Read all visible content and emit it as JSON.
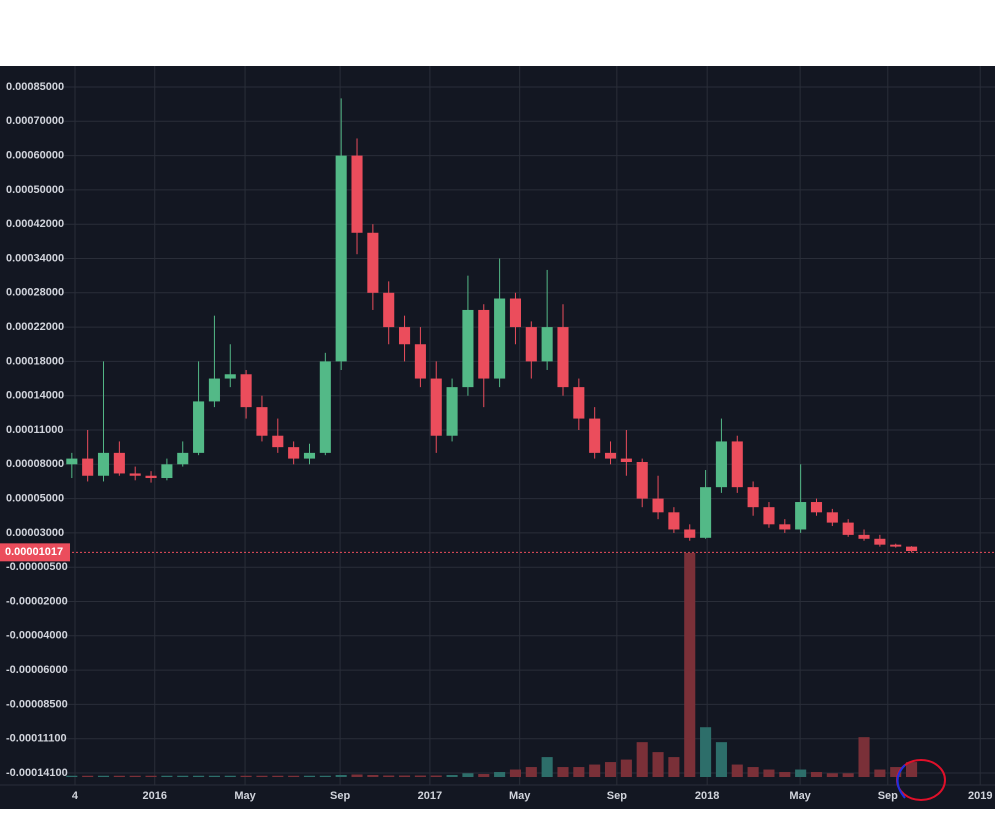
{
  "chart_data": {
    "type": "candlestick",
    "up_color": "#53b987",
    "down_color": "#eb4d5c",
    "grid": true,
    "x": [
      0,
      3,
      6,
      9,
      12,
      15,
      18,
      21,
      24,
      27,
      30,
      33,
      36,
      39,
      42,
      45,
      48,
      51,
      54,
      57,
      60,
      63,
      66,
      69,
      72,
      75,
      78,
      81,
      84,
      87,
      90,
      93,
      96,
      99,
      102,
      105,
      108,
      111,
      114,
      117,
      120,
      123,
      126,
      129,
      132,
      135,
      138,
      141,
      144,
      147,
      150,
      153,
      156,
      159
    ],
    "open": [
      8e-05,
      8.5e-05,
      7e-05,
      9e-05,
      7.2e-05,
      7e-05,
      6.8e-05,
      8e-05,
      9e-05,
      0.000135,
      0.00016,
      0.000165,
      0.00013,
      0.000105,
      9.5e-05,
      8.5e-05,
      9e-05,
      0.00018,
      0.0006,
      0.0004,
      0.00028,
      0.00022,
      0.0002,
      0.00016,
      0.000105,
      0.00015,
      0.00025,
      0.00016,
      0.00027,
      0.00022,
      0.00018,
      0.00022,
      0.00015,
      0.00012,
      9e-05,
      8.5e-05,
      8.2e-05,
      5e-05,
      4.2e-05,
      3.2e-05,
      2.5e-05,
      6e-05,
      0.0001,
      6e-05,
      4.5e-05,
      3.5e-05,
      3.2e-05,
      4.8e-05,
      4.2e-05,
      3.6e-05,
      2.8e-05,
      2.4e-05,
      1.8e-05,
      1.6e-05
    ],
    "high": [
      9e-05,
      0.00011,
      0.00018,
      0.0001,
      7.8e-05,
      7.4e-05,
      8.5e-05,
      0.0001,
      0.00018,
      0.00024,
      0.0002,
      0.00017,
      0.00014,
      0.00012,
      0.0001,
      9.8e-05,
      0.00019,
      0.0008,
      0.00065,
      0.00042,
      0.0003,
      0.00024,
      0.00022,
      0.00018,
      0.00016,
      0.00031,
      0.00026,
      0.00034,
      0.00028,
      0.00023,
      0.00032,
      0.00026,
      0.00016,
      0.00013,
      0.0001,
      0.00011,
      8.5e-05,
      7e-05,
      4.5e-05,
      3.5e-05,
      7.5e-05,
      0.00012,
      0.000105,
      6.5e-05,
      4.8e-05,
      3.8e-05,
      8e-05,
      5e-05,
      4.4e-05,
      3.8e-05,
      3.2e-05,
      2.8e-05,
      1.9e-05,
      1.65e-05
    ],
    "low": [
      6.8e-05,
      6.5e-05,
      6.5e-05,
      7e-05,
      6.6e-05,
      6.4e-05,
      6.6e-05,
      7.8e-05,
      8.8e-05,
      0.00013,
      0.00015,
      0.00012,
      0.0001,
      9e-05,
      8e-05,
      8e-05,
      8.8e-05,
      0.00017,
      0.00035,
      0.00025,
      0.0002,
      0.00018,
      0.00015,
      9e-05,
      0.0001,
      0.00014,
      0.00013,
      0.00015,
      0.0002,
      0.00016,
      0.00017,
      0.00014,
      0.00011,
      8.5e-05,
      8e-05,
      7e-05,
      4.5e-05,
      3.8e-05,
      3e-05,
      2.2e-05,
      2.4e-05,
      5.5e-05,
      5.5e-05,
      4e-05,
      3.3e-05,
      3e-05,
      3e-05,
      4e-05,
      3.4e-05,
      2.6e-05,
      2.2e-05,
      1.6e-05,
      1.5e-05,
      1e-05
    ],
    "close": [
      8.5e-05,
      7e-05,
      9e-05,
      7.2e-05,
      7e-05,
      6.8e-05,
      8e-05,
      9e-05,
      0.000135,
      0.00016,
      0.000165,
      0.00013,
      0.000105,
      9.5e-05,
      8.5e-05,
      9e-05,
      0.00018,
      0.0006,
      0.0004,
      0.00028,
      0.00022,
      0.0002,
      0.00016,
      0.000105,
      0.00015,
      0.00025,
      0.00016,
      0.00027,
      0.00022,
      0.00018,
      0.00022,
      0.00015,
      0.00012,
      9e-05,
      8.5e-05,
      8.2e-05,
      5e-05,
      4.2e-05,
      3.2e-05,
      2.5e-05,
      6e-05,
      0.0001,
      6e-05,
      4.5e-05,
      3.5e-05,
      3.2e-05,
      4.8e-05,
      4.2e-05,
      3.6e-05,
      2.8e-05,
      2.4e-05,
      1.8e-05,
      1.6e-05,
      1.15e-05
    ],
    "volume": [
      0.5,
      0.5,
      0.5,
      0.5,
      0.5,
      0.5,
      0.5,
      0.5,
      0.5,
      0.5,
      0.5,
      0.5,
      0.5,
      0.5,
      0.5,
      0.5,
      0.5,
      0.8,
      1,
      0.8,
      0.6,
      0.6,
      0.6,
      0.6,
      0.8,
      1.5,
      1.2,
      2,
      3,
      4,
      8,
      4,
      4,
      5,
      6,
      7,
      14,
      10,
      8,
      90,
      20,
      14,
      5,
      4,
      3,
      2,
      3,
      2,
      1.5,
      1.5,
      16,
      3,
      4,
      6
    ],
    "xlim": [
      -13.6,
      174.8
    ],
    "xticks": [
      {
        "value": 0.6,
        "label": "4"
      },
      {
        "value": 15.7,
        "label": "2016"
      },
      {
        "value": 32.8,
        "label": "May"
      },
      {
        "value": 50.8,
        "label": "Sep"
      },
      {
        "value": 67.8,
        "label": "2017"
      },
      {
        "value": 84.8,
        "label": "May"
      },
      {
        "value": 103.2,
        "label": "Sep"
      },
      {
        "value": 120.3,
        "label": "2018"
      },
      {
        "value": 137.9,
        "label": "May"
      },
      {
        "value": 154.5,
        "label": "Sep"
      },
      {
        "value": 172,
        "label": "2019"
      }
    ],
    "ylim": [
      -0.000154,
      0.00093
    ],
    "yticks": [
      {
        "value": 0.00085,
        "label": "0.00085000"
      },
      {
        "value": 0.0007,
        "label": "0.00070000"
      },
      {
        "value": 0.0006,
        "label": "0.00060000"
      },
      {
        "value": 0.0005,
        "label": "0.00050000"
      },
      {
        "value": 0.00042,
        "label": "0.00042000"
      },
      {
        "value": 0.00034,
        "label": "0.00034000"
      },
      {
        "value": 0.00028,
        "label": "0.00028000"
      },
      {
        "value": 0.00022,
        "label": "0.00022000"
      },
      {
        "value": 0.00018,
        "label": "0.00018000"
      },
      {
        "value": 0.00014,
        "label": "0.00014000"
      },
      {
        "value": 0.00011,
        "label": "0.00011000"
      },
      {
        "value": 8e-05,
        "label": "0.00008000"
      },
      {
        "value": 5e-05,
        "label": "0.00005000"
      },
      {
        "value": 3e-05,
        "label": "0.00003000"
      },
      {
        "value": -5e-06,
        "label": "-0.00000500"
      },
      {
        "value": -2e-05,
        "label": "-0.00002000"
      },
      {
        "value": -4e-05,
        "label": "-0.00004000"
      },
      {
        "value": -6e-05,
        "label": "-0.00006000"
      },
      {
        "value": -8.5e-05,
        "label": "-0.00008500"
      },
      {
        "value": -0.000111,
        "label": "-0.00011100"
      },
      {
        "value": -0.000141,
        "label": "-0.00014100"
      }
    ],
    "current_price": {
      "value": 1.017e-05,
      "label": "0.00001017"
    }
  }
}
